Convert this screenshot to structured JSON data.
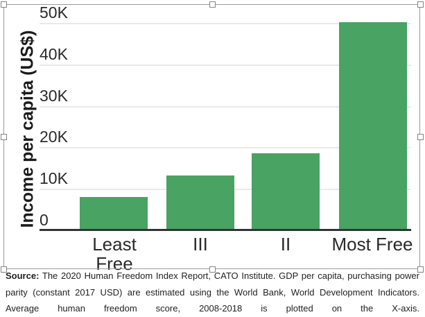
{
  "chart_data": {
    "type": "bar",
    "title": "",
    "categories": [
      "Least Free",
      "III",
      "II",
      "Most Free"
    ],
    "values": [
      7700,
      13000,
      18400,
      50200
    ],
    "xlabel": "",
    "ylabel": "Income per capita (US$)",
    "ylim": [
      0,
      50000
    ],
    "yticks": {
      "values": [
        0,
        10000,
        20000,
        30000,
        40000,
        50000
      ],
      "labels": [
        "0",
        "10K",
        "20K",
        "30K",
        "40K",
        "50K"
      ]
    },
    "grid": "horizontal gridlines on, behind bars",
    "legend": "none",
    "bar_color": "#49a363",
    "axis_line_color": "#333333"
  },
  "caption": {
    "source_label": "Source:",
    "lines": [
      "The 2020 Human Freedom Index Report, CATO Institute. GDP per capita, purchasing power",
      "parity (constant 2017 USD) are estimated using the World Bank, World Development Indicators.",
      "Average human freedom score, 2008-2018 is plotted on the X-axis."
    ]
  },
  "ui": {
    "image_selected": true,
    "selection_handle_count": 8
  }
}
